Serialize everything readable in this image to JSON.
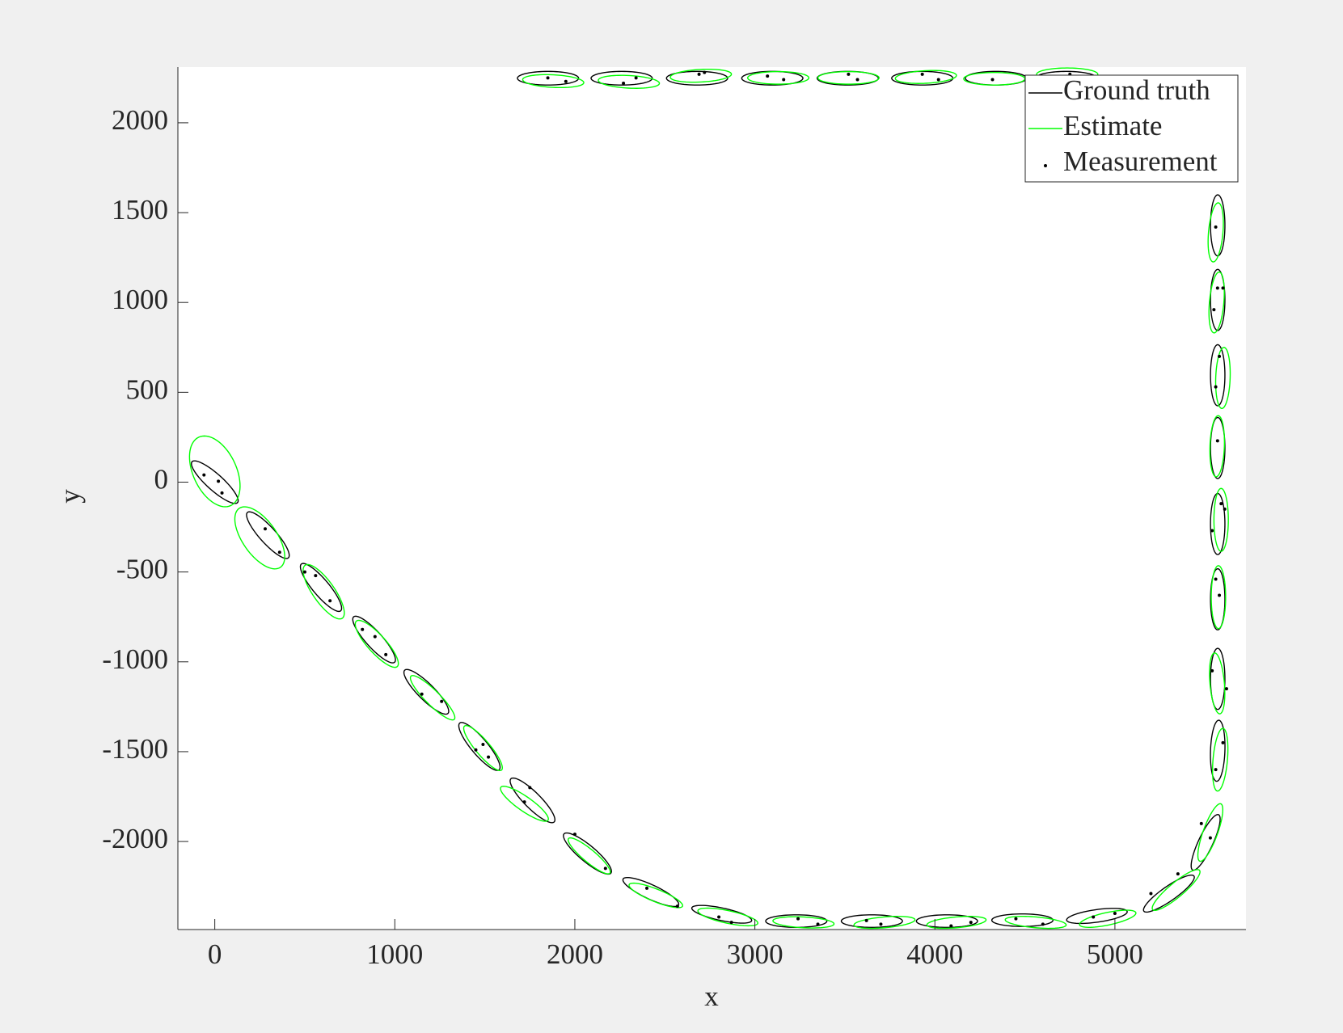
{
  "chart_data": {
    "type": "ellipse",
    "x_label": "x",
    "y_label": "y",
    "xlim": [
      -205,
      5728
    ],
    "ylim": [
      -2490,
      2310
    ],
    "xticks": [
      0,
      1000,
      2000,
      3000,
      4000,
      5000
    ],
    "yticks": [
      -2000,
      -1500,
      -1000,
      -500,
      0,
      500,
      1000,
      1500,
      2000
    ],
    "legend": "northeast",
    "series": [
      {
        "name": "Ground truth",
        "color": "#000000",
        "x": [
          0,
          295,
          590,
          885,
          1175,
          1470,
          1765,
          2070,
          2422,
          2816,
          3230,
          3650,
          4067,
          4486,
          4900,
          5300,
          5504,
          5571,
          5571,
          5571,
          5571,
          5571,
          5571,
          5571,
          5571,
          4730,
          4339,
          3930,
          3516,
          3097,
          2679,
          2260,
          1851
        ],
        "y": [
          0,
          -295,
          -586,
          -876,
          -1167,
          -1471,
          -1771,
          -2067,
          -2281,
          -2405,
          -2443,
          -2443,
          -2443,
          -2438,
          -2414,
          -2290,
          -2005,
          -1495,
          -1095,
          -652,
          -233,
          190,
          595,
          1014,
          1429,
          2248,
          2248,
          2248,
          2248,
          2248,
          2248,
          2248,
          2248
        ],
        "rx": [
          170,
          170,
          170,
          170,
          170,
          170,
          170,
          170,
          170,
          170,
          170,
          170,
          170,
          170,
          170,
          170,
          170,
          170,
          170,
          170,
          170,
          170,
          170,
          170,
          170,
          170,
          170,
          170,
          170,
          170,
          170,
          170,
          170
        ],
        "ry": [
          45,
          45,
          45,
          45,
          45,
          45,
          45,
          45,
          40,
          35,
          35,
          35,
          35,
          35,
          35,
          40,
          40,
          40,
          40,
          40,
          40,
          40,
          40,
          40,
          40,
          38,
          38,
          38,
          38,
          38,
          38,
          38,
          38
        ],
        "angle": [
          -42,
          -48,
          -50,
          -48,
          -45,
          -50,
          -45,
          -40,
          -25,
          -12,
          0,
          0,
          0,
          0,
          8,
          35,
          65,
          88,
          90,
          90,
          90,
          90,
          90,
          90,
          90,
          0,
          0,
          0,
          0,
          0,
          0,
          0,
          0
        ]
      },
      {
        "name": "Estimate",
        "color": "#00ff00",
        "x": [
          0,
          250,
          605,
          900,
          1210,
          1490,
          1720,
          2080,
          2450,
          2850,
          3270,
          3720,
          4120,
          4560,
          4960,
          5340,
          5530,
          5585,
          5568,
          5575,
          5590,
          5568,
          5600,
          5565,
          5560,
          4735,
          4330,
          3950,
          3520,
          3130,
          2700,
          2300,
          1880
        ],
        "y": [
          60,
          -310,
          -610,
          -900,
          -1200,
          -1480,
          -1790,
          -2080,
          -2300,
          -2420,
          -2450,
          -2450,
          -2450,
          -2450,
          -2430,
          -2270,
          -1950,
          -1545,
          -1120,
          -640,
          -210,
          200,
          580,
          1000,
          1390,
          2270,
          2245,
          2255,
          2250,
          2250,
          2262,
          2228,
          2232
        ],
        "rx": [
          210,
          200,
          180,
          170,
          170,
          160,
          160,
          150,
          160,
          170,
          170,
          170,
          165,
          170,
          160,
          170,
          170,
          175,
          170,
          175,
          175,
          170,
          170,
          170,
          165,
          170,
          170,
          170,
          170,
          170,
          170,
          170,
          170
        ],
        "ry": [
          120,
          95,
          60,
          50,
          40,
          40,
          40,
          35,
          35,
          35,
          30,
          30,
          30,
          30,
          35,
          40,
          40,
          40,
          40,
          40,
          40,
          40,
          40,
          40,
          40,
          35,
          35,
          35,
          35,
          35,
          35,
          35,
          35
        ],
        "angle": [
          -65,
          -55,
          -55,
          -48,
          -45,
          -50,
          -35,
          -40,
          -22,
          -12,
          -3,
          5,
          5,
          -5,
          12,
          40,
          70,
          85,
          95,
          90,
          90,
          88,
          88,
          85,
          85,
          0,
          0,
          3,
          0,
          0,
          3,
          -3,
          -3
        ]
      },
      {
        "name": "Measurement",
        "color": "#000000",
        "x": [
          -60,
          40,
          20,
          280,
          360,
          500,
          560,
          640,
          820,
          950,
          890,
          1150,
          1260,
          1450,
          1490,
          1520,
          1750,
          1720,
          2000,
          2170,
          2400,
          2570,
          2800,
          2870,
          3240,
          3350,
          3620,
          3700,
          4090,
          4200,
          4450,
          4600,
          4880,
          5000,
          5200,
          5350,
          5480,
          5530,
          5560,
          5600,
          5540,
          5620,
          5560,
          5580,
          5590,
          5540,
          5570,
          5610,
          5560,
          5580,
          5550,
          5570,
          5600,
          5560,
          4750,
          4320,
          3930,
          4020,
          3520,
          3570,
          3070,
          3160,
          2690,
          2720,
          2270,
          2340,
          1850,
          1950
        ],
        "y": [
          40,
          -60,
          5,
          -260,
          -390,
          -500,
          -520,
          -660,
          -820,
          -960,
          -860,
          -1180,
          -1220,
          -1490,
          -1460,
          -1530,
          -1700,
          -1780,
          -1960,
          -2150,
          -2260,
          -2360,
          -2420,
          -2450,
          -2430,
          -2460,
          -2440,
          -2460,
          -2470,
          -2450,
          -2430,
          -2460,
          -2420,
          -2400,
          -2290,
          -2180,
          -1900,
          -1980,
          -1600,
          -1450,
          -1050,
          -1150,
          -540,
          -630,
          -120,
          -270,
          230,
          -150,
          530,
          700,
          960,
          1080,
          1080,
          1420,
          2270,
          2240,
          2270,
          2240,
          2270,
          2240,
          2260,
          2240,
          2270,
          2280,
          2220,
          2250,
          2250,
          2230
        ]
      }
    ]
  }
}
